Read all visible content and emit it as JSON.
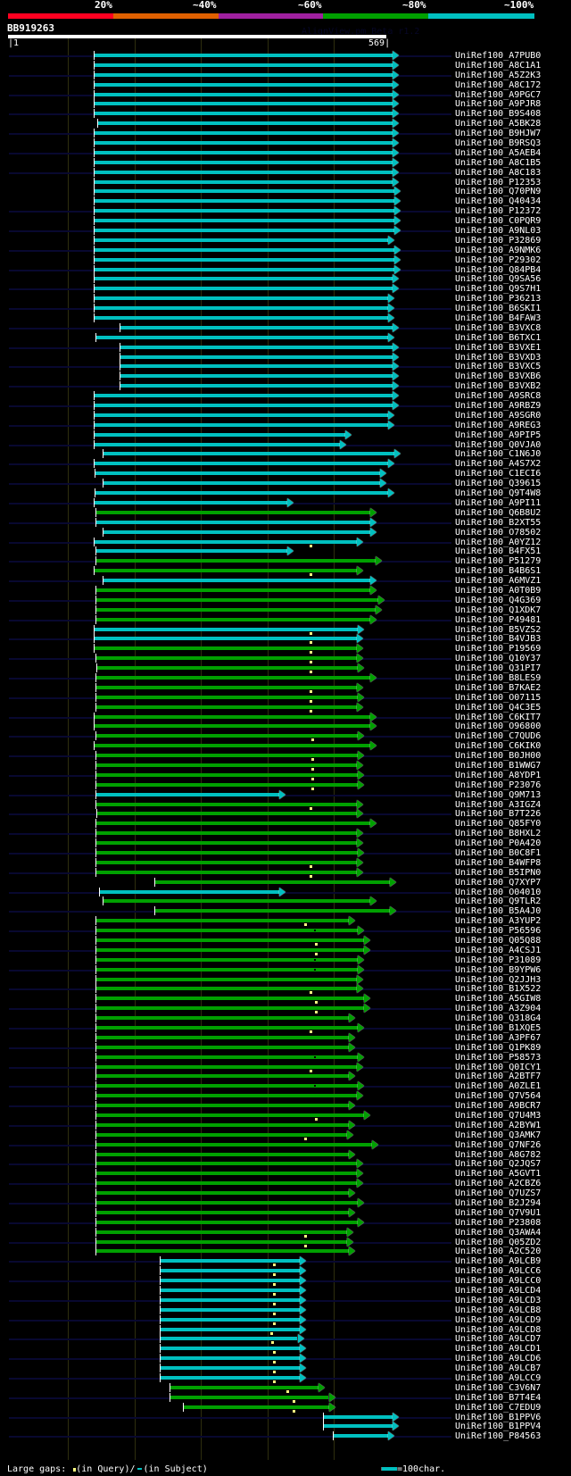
{
  "identity_scale": {
    "labels": [
      "20%",
      "~40%",
      "~60%",
      "~80%",
      "~100%"
    ],
    "colors": [
      "#ff0020",
      "#e06000",
      "#a020a0",
      "#00a000",
      "#00c0c0"
    ]
  },
  "query": {
    "name": "BB919263",
    "start": "1",
    "end": "569",
    "length": 569
  },
  "watermark": "AlignView.pm Beta r1.2",
  "legend": {
    "gaps_label": "Large gaps:",
    "query_gap_label": "(in Query)/",
    "subject_gap_label": "(in Subject)",
    "scale_label": "=100char."
  },
  "colors": {
    "cyan": "#00c0c0",
    "green": "#00a000",
    "background": "#000000",
    "track": "#080830",
    "grid": "#2e2e0e",
    "gap_marker": "#ffff80"
  },
  "hits": [
    {
      "name": "UniRef100_A7PUB0",
      "s": 121,
      "e": 569,
      "c": "cyan",
      "bg": 1
    },
    {
      "name": "UniRef100_A8C1A1",
      "s": 121,
      "e": 569,
      "c": "cyan",
      "bg": 0
    },
    {
      "name": "UniRef100_A5Z2K3",
      "s": 121,
      "e": 569,
      "c": "cyan",
      "bg": 1
    },
    {
      "name": "UniRef100_A8C172",
      "s": 121,
      "e": 569,
      "c": "cyan",
      "bg": 0
    },
    {
      "name": "UniRef100_A9PGC7",
      "s": 121,
      "e": 569,
      "c": "cyan",
      "bg": 1
    },
    {
      "name": "UniRef100_A9PJR8",
      "s": 121,
      "e": 569,
      "c": "cyan",
      "bg": 0
    },
    {
      "name": "UniRef100_B9S408",
      "s": 121,
      "e": 569,
      "c": "cyan",
      "bg": 1
    },
    {
      "name": "UniRef100_A5BK28",
      "s": 126,
      "e": 569,
      "c": "cyan",
      "bg": 0
    },
    {
      "name": "UniRef100_B9HJW7",
      "s": 121,
      "e": 569,
      "c": "cyan",
      "bg": 1
    },
    {
      "name": "UniRef100_B9RSQ3",
      "s": 121,
      "e": 569,
      "c": "cyan",
      "bg": 0
    },
    {
      "name": "UniRef100_A5AEB4",
      "s": 121,
      "e": 569,
      "c": "cyan",
      "bg": 1
    },
    {
      "name": "UniRef100_A8C1B5",
      "s": 121,
      "e": 569,
      "c": "cyan",
      "bg": 0
    },
    {
      "name": "UniRef100_A8C183",
      "s": 121,
      "e": 569,
      "c": "cyan",
      "bg": 1
    },
    {
      "name": "UniRef100_P12353",
      "s": 121,
      "e": 569,
      "c": "cyan",
      "bg": 0
    },
    {
      "name": "UniRef100_Q70PN9",
      "s": 121,
      "e": 572,
      "c": "cyan",
      "bg": 0
    },
    {
      "name": "UniRef100_Q40434",
      "s": 121,
      "e": 572,
      "c": "cyan",
      "bg": 0
    },
    {
      "name": "UniRef100_P12372",
      "s": 121,
      "e": 572,
      "c": "cyan",
      "bg": 1
    },
    {
      "name": "UniRef100_C0PQR9",
      "s": 121,
      "e": 572,
      "c": "cyan",
      "bg": 0
    },
    {
      "name": "UniRef100_A9NL03",
      "s": 121,
      "e": 572,
      "c": "cyan",
      "bg": 1
    },
    {
      "name": "UniRef100_P32869",
      "s": 121,
      "e": 562,
      "c": "cyan",
      "bg": 0
    },
    {
      "name": "UniRef100_A9NMK6",
      "s": 121,
      "e": 572,
      "c": "cyan",
      "bg": 1
    },
    {
      "name": "UniRef100_P29302",
      "s": 121,
      "e": 572,
      "c": "cyan",
      "bg": 0
    },
    {
      "name": "UniRef100_Q84PB4",
      "s": 121,
      "e": 572,
      "c": "cyan",
      "bg": 1
    },
    {
      "name": "UniRef100_Q9SA56",
      "s": 121,
      "e": 569,
      "c": "cyan",
      "bg": 0
    },
    {
      "name": "UniRef100_Q9S7H1",
      "s": 121,
      "e": 569,
      "c": "cyan",
      "bg": 1
    },
    {
      "name": "UniRef100_P36213",
      "s": 121,
      "e": 562,
      "c": "cyan",
      "bg": 0
    },
    {
      "name": "UniRef100_B6SKI1",
      "s": 121,
      "e": 562,
      "c": "cyan",
      "bg": 1
    },
    {
      "name": "UniRef100_B4FAW3",
      "s": 121,
      "e": 562,
      "c": "cyan",
      "bg": 0
    },
    {
      "name": "UniRef100_B3VXC8",
      "s": 159,
      "e": 569,
      "c": "cyan",
      "bg": 1
    },
    {
      "name": "UniRef100_B6TXC1",
      "s": 123,
      "e": 562,
      "c": "cyan",
      "bg": 0
    },
    {
      "name": "UniRef100_B3VXE1",
      "s": 159,
      "e": 569,
      "c": "cyan",
      "bg": 1
    },
    {
      "name": "UniRef100_B3VXD3",
      "s": 159,
      "e": 569,
      "c": "cyan",
      "bg": 0
    },
    {
      "name": "UniRef100_B3VXC5",
      "s": 159,
      "e": 569,
      "c": "cyan",
      "bg": 1
    },
    {
      "name": "UniRef100_B3VXB6",
      "s": 159,
      "e": 569,
      "c": "cyan",
      "bg": 0
    },
    {
      "name": "UniRef100_B3VXB2",
      "s": 159,
      "e": 569,
      "c": "cyan",
      "bg": 1
    },
    {
      "name": "UniRef100_A9SRC8",
      "s": 121,
      "e": 569,
      "c": "cyan",
      "bg": 0
    },
    {
      "name": "UniRef100_A9RBZ9",
      "s": 121,
      "e": 569,
      "c": "cyan",
      "bg": 1
    },
    {
      "name": "UniRef100_A9SGR0",
      "s": 121,
      "e": 562,
      "c": "cyan",
      "bg": 0
    },
    {
      "name": "UniRef100_A9REG3",
      "s": 121,
      "e": 562,
      "c": "cyan",
      "bg": 1
    },
    {
      "name": "UniRef100_A9PIP5",
      "s": 121,
      "e": 498,
      "c": "cyan",
      "bg": 0
    },
    {
      "name": "UniRef100_Q0VJA0",
      "s": 121,
      "e": 490,
      "c": "cyan",
      "bg": 1
    },
    {
      "name": "UniRef100_C1N6J0",
      "s": 134,
      "e": 572,
      "c": "cyan",
      "bg": 0
    },
    {
      "name": "UniRef100_A4S7X2",
      "s": 121,
      "e": 562,
      "c": "cyan",
      "bg": 1
    },
    {
      "name": "UniRef100_C1ECI6",
      "s": 122,
      "e": 550,
      "c": "cyan",
      "bg": 0
    },
    {
      "name": "UniRef100_Q39615",
      "s": 134,
      "e": 550,
      "c": "cyan",
      "bg": 1
    },
    {
      "name": "UniRef100_Q9T4W8",
      "s": 122,
      "e": 562,
      "c": "cyan",
      "bg": 0
    },
    {
      "name": "UniRef100_A9PI11",
      "s": 121,
      "e": 410,
      "c": "cyan",
      "bg": 1
    },
    {
      "name": "UniRef100_Q6B8U2",
      "s": 123,
      "e": 535,
      "c": "green",
      "bg": 0
    },
    {
      "name": "UniRef100_B2XT55",
      "s": 123,
      "e": 535,
      "c": "cyan",
      "bg": 1
    },
    {
      "name": "UniRef100_O78502",
      "s": 134,
      "e": 535,
      "c": "cyan",
      "bg": 0
    },
    {
      "name": "UniRef100_A0YZ12",
      "s": 121,
      "e": 515,
      "c": "cyan",
      "bg": 1,
      "gq": [
        445
      ]
    },
    {
      "name": "UniRef100_B4FX51",
      "s": 123,
      "e": 410,
      "c": "cyan",
      "bg": 0
    },
    {
      "name": "UniRef100_P51279",
      "s": 123,
      "e": 544,
      "c": "green",
      "bg": 1
    },
    {
      "name": "UniRef100_B4B6S1",
      "s": 121,
      "e": 515,
      "c": "green",
      "bg": 0,
      "gq": [
        445
      ]
    },
    {
      "name": "UniRef100_A6MVZ1",
      "s": 134,
      "e": 535,
      "c": "cyan",
      "bg": 1
    },
    {
      "name": "UniRef100_A0T0B9",
      "s": 123,
      "e": 535,
      "c": "green",
      "bg": 0
    },
    {
      "name": "UniRef100_Q4G369",
      "s": 123,
      "e": 547,
      "c": "green",
      "bg": 1
    },
    {
      "name": "UniRef100_Q1XDK7",
      "s": 123,
      "e": 544,
      "c": "green",
      "bg": 0
    },
    {
      "name": "UniRef100_P49481",
      "s": 123,
      "e": 535,
      "c": "green",
      "bg": 1
    },
    {
      "name": "UniRef100_B5VZS2",
      "s": 121,
      "e": 517,
      "c": "cyan",
      "bg": 0,
      "gq": [
        446
      ]
    },
    {
      "name": "UniRef100_B4VJB3",
      "s": 121,
      "e": 515,
      "c": "cyan",
      "bg": 1,
      "gq": [
        446
      ]
    },
    {
      "name": "UniRef100_P19569",
      "s": 121,
      "e": 515,
      "c": "green",
      "bg": 0,
      "gq": [
        446
      ]
    },
    {
      "name": "UniRef100_Q10Y37",
      "s": 123,
      "e": 515,
      "c": "green",
      "bg": 1,
      "gq": [
        446
      ]
    },
    {
      "name": "UniRef100_Q31PI7",
      "s": 125,
      "e": 517,
      "c": "green",
      "bg": 0,
      "gq": [
        446
      ]
    },
    {
      "name": "UniRef100_B8LES9",
      "s": 123,
      "e": 535,
      "c": "green",
      "bg": 1
    },
    {
      "name": "UniRef100_B7KAE2",
      "s": 123,
      "e": 515,
      "c": "green",
      "bg": 0,
      "gq": [
        446
      ]
    },
    {
      "name": "UniRef100_O07115",
      "s": 123,
      "e": 517,
      "c": "green",
      "bg": 1,
      "gq": [
        446
      ]
    },
    {
      "name": "UniRef100_Q4C3E5",
      "s": 123,
      "e": 515,
      "c": "green",
      "bg": 0,
      "gq": [
        446
      ]
    },
    {
      "name": "UniRef100_C6KIT7",
      "s": 121,
      "e": 535,
      "c": "green",
      "bg": 1
    },
    {
      "name": "UniRef100_O96800",
      "s": 121,
      "e": 535,
      "c": "green",
      "bg": 0
    },
    {
      "name": "UniRef100_C7QUD6",
      "s": 123,
      "e": 517,
      "c": "green",
      "bg": 1,
      "gq": [
        448
      ]
    },
    {
      "name": "UniRef100_C6KIK0",
      "s": 121,
      "e": 535,
      "c": "green",
      "bg": 0
    },
    {
      "name": "UniRef100_B0JH00",
      "s": 123,
      "e": 517,
      "c": "green",
      "bg": 1,
      "gq": [
        448
      ]
    },
    {
      "name": "UniRef100_B1WWG7",
      "s": 123,
      "e": 515,
      "c": "green",
      "bg": 0,
      "gq": [
        448
      ]
    },
    {
      "name": "UniRef100_A8YDP1",
      "s": 123,
      "e": 517,
      "c": "green",
      "bg": 1,
      "gq": [
        448
      ]
    },
    {
      "name": "UniRef100_P23076",
      "s": 123,
      "e": 517,
      "c": "green",
      "bg": 0,
      "gq": [
        448
      ]
    },
    {
      "name": "UniRef100_Q9M713",
      "s": 123,
      "e": 398,
      "c": "cyan",
      "bg": 1
    },
    {
      "name": "UniRef100_A3IGZ4",
      "s": 123,
      "e": 515,
      "c": "green",
      "bg": 0,
      "gq": [
        446
      ]
    },
    {
      "name": "UniRef100_B7T226",
      "s": 125,
      "e": 515,
      "c": "green",
      "bg": 1
    },
    {
      "name": "UniRef100_Q85FY0",
      "s": 123,
      "e": 535,
      "c": "green",
      "bg": 0
    },
    {
      "name": "UniRef100_B8HXL2",
      "s": 123,
      "e": 515,
      "c": "green",
      "bg": 1
    },
    {
      "name": "UniRef100_P0A420",
      "s": 123,
      "e": 515,
      "c": "green",
      "bg": 0
    },
    {
      "name": "UniRef100_B0C8F1",
      "s": 123,
      "e": 517,
      "c": "green",
      "bg": 1
    },
    {
      "name": "UniRef100_B4WFP8",
      "s": 123,
      "e": 515,
      "c": "green",
      "bg": 0,
      "gq": [
        446
      ]
    },
    {
      "name": "UniRef100_B5IPN0",
      "s": 123,
      "e": 515,
      "c": "green",
      "bg": 1,
      "gq": [
        446
      ]
    },
    {
      "name": "UniRef100_Q7XYP7",
      "s": 212,
      "e": 565,
      "c": "green",
      "bg": 0
    },
    {
      "name": "UniRef100_O04010",
      "s": 129,
      "e": 398,
      "c": "cyan",
      "bg": 1
    },
    {
      "name": "UniRef100_Q9TLR2",
      "s": 134,
      "e": 535,
      "c": "green",
      "bg": 0
    },
    {
      "name": "UniRef100_B5A4J0",
      "s": 212,
      "e": 565,
      "c": "green",
      "bg": 1
    },
    {
      "name": "UniRef100_A3YUP2",
      "s": 123,
      "e": 503,
      "c": "green",
      "bg": 0,
      "gq": [
        437
      ]
    },
    {
      "name": "UniRef100_P56596",
      "s": 123,
      "e": 517,
      "c": "green",
      "bg": 1,
      "gs": [
        452
      ]
    },
    {
      "name": "UniRef100_Q05Q88",
      "s": 123,
      "e": 526,
      "c": "green",
      "bg": 0,
      "gq": [
        454
      ]
    },
    {
      "name": "UniRef100_A4CSJ1",
      "s": 123,
      "e": 526,
      "c": "green",
      "bg": 1,
      "gq": [
        454
      ]
    },
    {
      "name": "UniRef100_P31089",
      "s": 123,
      "e": 517,
      "c": "green",
      "bg": 0,
      "gs": [
        452
      ]
    },
    {
      "name": "UniRef100_B9YPW6",
      "s": 123,
      "e": 517,
      "c": "green",
      "bg": 1,
      "gs": [
        452
      ]
    },
    {
      "name": "UniRef100_Q2JJH3",
      "s": 123,
      "e": 515,
      "c": "green",
      "bg": 0
    },
    {
      "name": "UniRef100_B1X522",
      "s": 123,
      "e": 515,
      "c": "green",
      "bg": 1,
      "gq": [
        446
      ]
    },
    {
      "name": "UniRef100_A5GIW8",
      "s": 123,
      "e": 526,
      "c": "green",
      "bg": 0,
      "gq": [
        454
      ]
    },
    {
      "name": "UniRef100_A3Z904",
      "s": 123,
      "e": 526,
      "c": "green",
      "bg": 1,
      "gq": [
        454
      ]
    },
    {
      "name": "UniRef100_Q318G4",
      "s": 123,
      "e": 503,
      "c": "green",
      "bg": 0
    },
    {
      "name": "UniRef100_B1XQE5",
      "s": 123,
      "e": 517,
      "c": "green",
      "bg": 1,
      "gq": [
        446
      ]
    },
    {
      "name": "UniRef100_A3PF67",
      "s": 123,
      "e": 503,
      "c": "green",
      "bg": 0
    },
    {
      "name": "UniRef100_Q1PK89",
      "s": 123,
      "e": 503,
      "c": "green",
      "bg": 1
    },
    {
      "name": "UniRef100_P58573",
      "s": 123,
      "e": 517,
      "c": "green",
      "bg": 0,
      "gs": [
        452
      ]
    },
    {
      "name": "UniRef100_Q0ICY1",
      "s": 123,
      "e": 515,
      "c": "green",
      "bg": 1,
      "gq": [
        446
      ]
    },
    {
      "name": "UniRef100_A2BTF7",
      "s": 123,
      "e": 503,
      "c": "green",
      "bg": 0
    },
    {
      "name": "UniRef100_A0ZLE1",
      "s": 123,
      "e": 517,
      "c": "green",
      "bg": 1,
      "gs": [
        452
      ]
    },
    {
      "name": "UniRef100_Q7V564",
      "s": 123,
      "e": 515,
      "c": "green",
      "bg": 0
    },
    {
      "name": "UniRef100_A9BCR7",
      "s": 123,
      "e": 503,
      "c": "green",
      "bg": 1
    },
    {
      "name": "UniRef100_Q7U4M3",
      "s": 123,
      "e": 526,
      "c": "green",
      "bg": 0,
      "gq": [
        454
      ]
    },
    {
      "name": "UniRef100_A2BYW1",
      "s": 123,
      "e": 503,
      "c": "green",
      "bg": 1
    },
    {
      "name": "UniRef100_Q3AMK7",
      "s": 123,
      "e": 500,
      "c": "green",
      "bg": 0,
      "gq": [
        437
      ]
    },
    {
      "name": "UniRef100_Q7NF26",
      "s": 123,
      "e": 538,
      "c": "green",
      "bg": 1
    },
    {
      "name": "UniRef100_A8G782",
      "s": 123,
      "e": 503,
      "c": "green",
      "bg": 0
    },
    {
      "name": "UniRef100_Q2JQS7",
      "s": 123,
      "e": 515,
      "c": "green",
      "bg": 1
    },
    {
      "name": "UniRef100_A5GVT1",
      "s": 123,
      "e": 515,
      "c": "green",
      "bg": 0
    },
    {
      "name": "UniRef100_A2CBZ6",
      "s": 123,
      "e": 515,
      "c": "green",
      "bg": 1
    },
    {
      "name": "UniRef100_Q7UZS7",
      "s": 123,
      "e": 503,
      "c": "green",
      "bg": 0
    },
    {
      "name": "UniRef100_B2J294",
      "s": 123,
      "e": 517,
      "c": "green",
      "bg": 1
    },
    {
      "name": "UniRef100_Q7V9U1",
      "s": 123,
      "e": 503,
      "c": "green",
      "bg": 0
    },
    {
      "name": "UniRef100_P23808",
      "s": 123,
      "e": 517,
      "c": "green",
      "bg": 1
    },
    {
      "name": "UniRef100_Q3AWA4",
      "s": 123,
      "e": 500,
      "c": "green",
      "bg": 0,
      "gq": [
        437
      ]
    },
    {
      "name": "UniRef100_Q05ZD2",
      "s": 123,
      "e": 500,
      "c": "green",
      "bg": 1,
      "gq": [
        437
      ]
    },
    {
      "name": "UniRef100_A2C520",
      "s": 123,
      "e": 503,
      "c": "green",
      "bg": 0
    },
    {
      "name": "UniRef100_A9LCB9",
      "s": 220,
      "e": 429,
      "c": "cyan",
      "bg": 1,
      "gq": [
        390
      ]
    },
    {
      "name": "UniRef100_A9LCC6",
      "s": 220,
      "e": 429,
      "c": "cyan",
      "bg": 0,
      "gq": [
        390
      ]
    },
    {
      "name": "UniRef100_A9LCC0",
      "s": 220,
      "e": 429,
      "c": "cyan",
      "bg": 1,
      "gq": [
        390
      ]
    },
    {
      "name": "UniRef100_A9LCD4",
      "s": 220,
      "e": 429,
      "c": "cyan",
      "bg": 0,
      "gq": [
        390
      ]
    },
    {
      "name": "UniRef100_A9LCD3",
      "s": 220,
      "e": 429,
      "c": "cyan",
      "bg": 1,
      "gq": [
        390
      ]
    },
    {
      "name": "UniRef100_A9LCB8",
      "s": 220,
      "e": 429,
      "c": "cyan",
      "bg": 0,
      "gq": [
        390
      ]
    },
    {
      "name": "UniRef100_A9LCD9",
      "s": 220,
      "e": 429,
      "c": "cyan",
      "bg": 1,
      "gq": [
        390
      ]
    },
    {
      "name": "UniRef100_A9LCD8",
      "s": 220,
      "e": 429,
      "c": "cyan",
      "bg": 0,
      "gq": [
        386
      ]
    },
    {
      "name": "UniRef100_A9LCD7",
      "s": 220,
      "e": 426,
      "c": "cyan",
      "bg": 1,
      "gq": [
        388
      ]
    },
    {
      "name": "UniRef100_A9LCD1",
      "s": 220,
      "e": 429,
      "c": "cyan",
      "bg": 0,
      "gq": [
        390
      ]
    },
    {
      "name": "UniRef100_A9LCD6",
      "s": 220,
      "e": 429,
      "c": "cyan",
      "bg": 1,
      "gq": [
        390
      ]
    },
    {
      "name": "UniRef100_A9LCB7",
      "s": 220,
      "e": 429,
      "c": "cyan",
      "bg": 0,
      "gq": [
        390
      ]
    },
    {
      "name": "UniRef100_A9LCC9",
      "s": 220,
      "e": 429,
      "c": "cyan",
      "bg": 1,
      "gq": [
        390
      ]
    },
    {
      "name": "UniRef100_C3V6N7",
      "s": 235,
      "e": 458,
      "c": "green",
      "bg": 0,
      "gq": [
        410
      ]
    },
    {
      "name": "UniRef100_B7T4E4",
      "s": 235,
      "e": 473,
      "c": "green",
      "bg": 1,
      "gq": [
        420
      ]
    },
    {
      "name": "UniRef100_C7EDU9",
      "s": 255,
      "e": 473,
      "c": "green",
      "bg": 0,
      "gq": [
        420
      ]
    },
    {
      "name": "UniRef100_B1PPV6",
      "s": 465,
      "e": 569,
      "c": "cyan",
      "bg": 1
    },
    {
      "name": "UniRef100_B1PPV4",
      "s": 465,
      "e": 569,
      "c": "cyan",
      "bg": 0
    },
    {
      "name": "UniRef100_P84563",
      "s": 480,
      "e": 562,
      "c": "cyan",
      "bg": 1
    }
  ]
}
